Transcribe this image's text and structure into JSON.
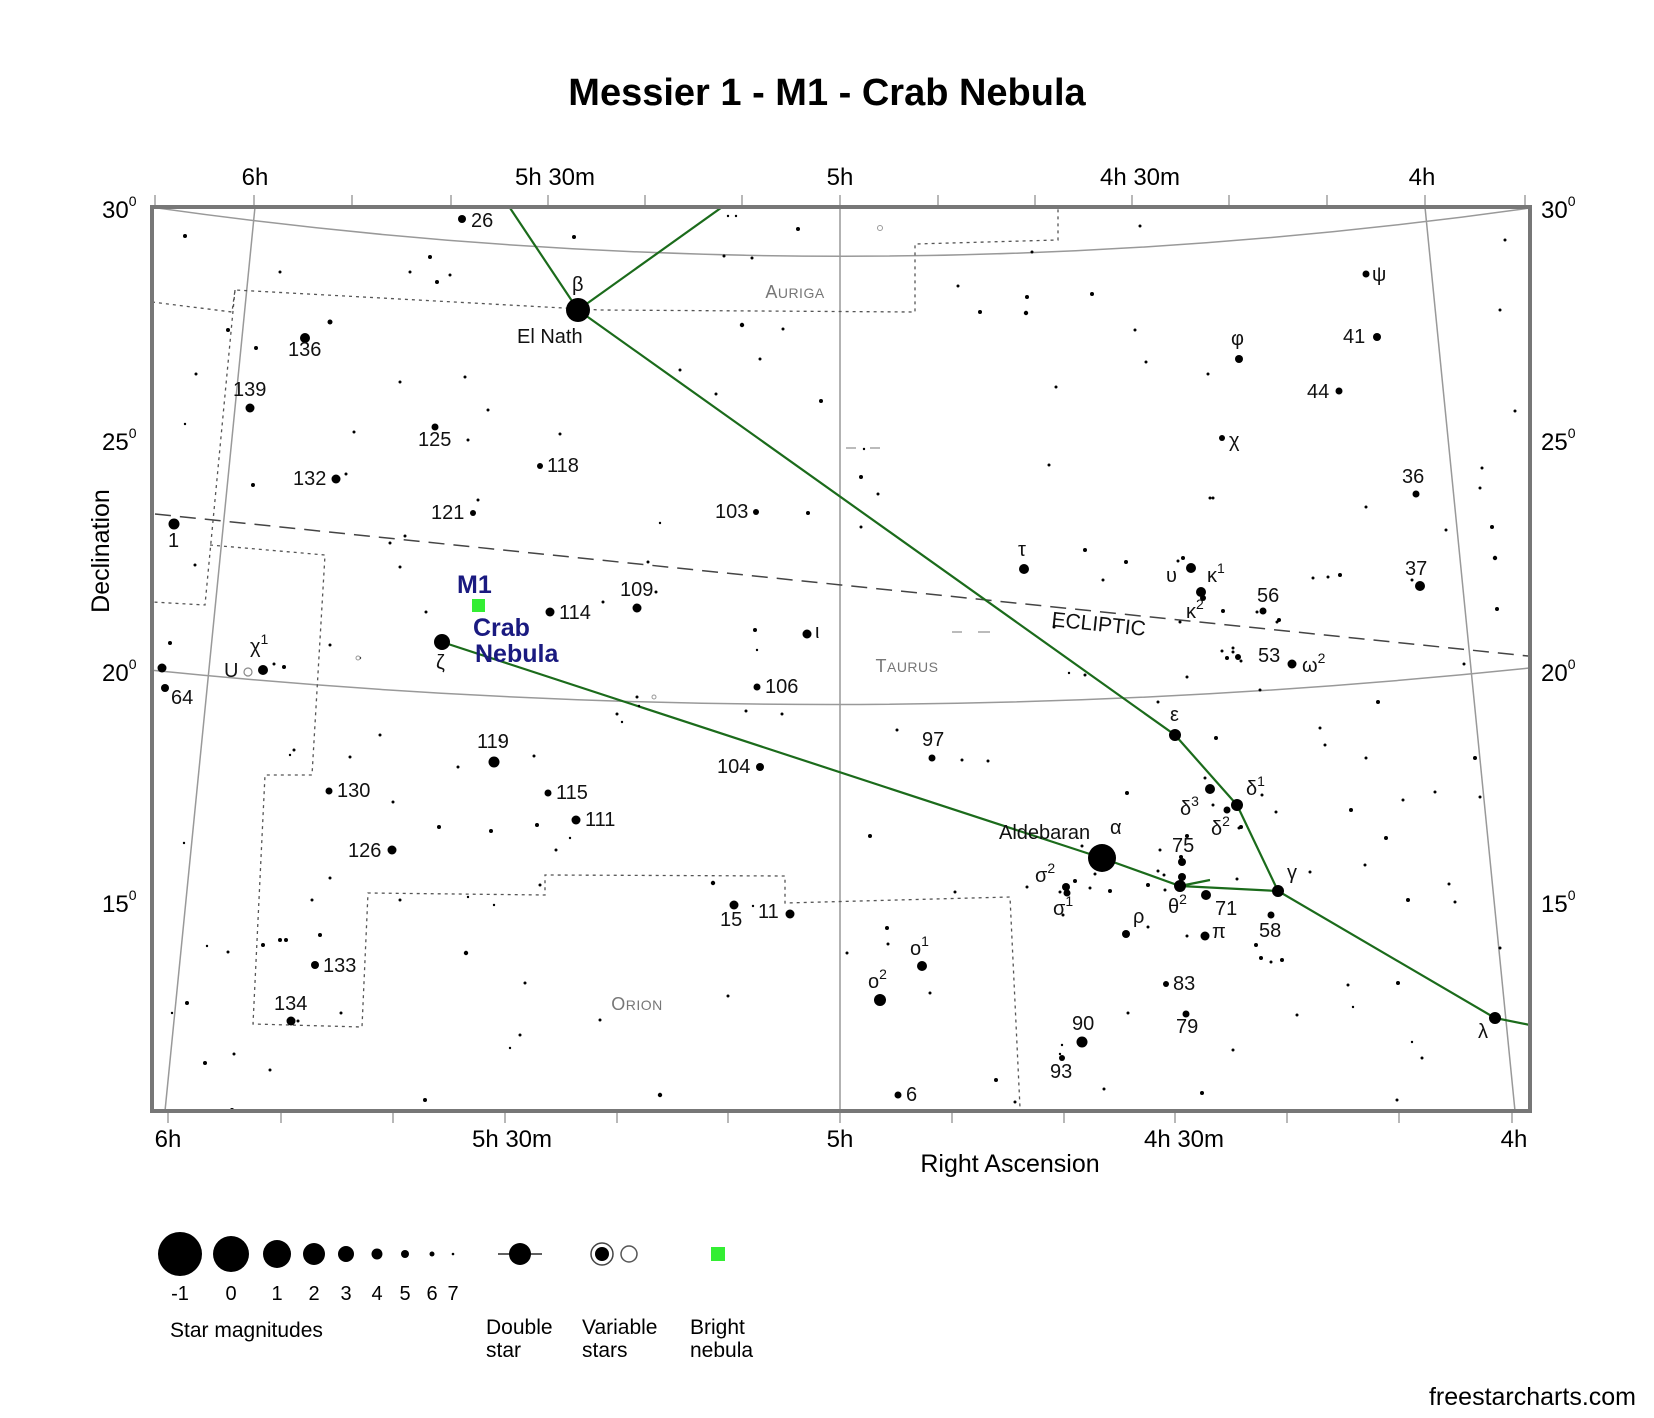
{
  "title": "Messier 1 - M1 - Crab Nebula",
  "colors": {
    "frame": "#777777",
    "grid": "#999999",
    "asterism": "#1b6b1b",
    "boundary": "#555555",
    "nebula": "#33ee33",
    "nebula_label": "#1a1a80",
    "star": "#000000"
  },
  "axes": {
    "x_title": "Right Ascension",
    "y_title": "Declination",
    "ra_ticks_top": [
      "6h",
      "5h 30m",
      "5h",
      "4h 30m",
      "4h"
    ],
    "ra_ticks_bottom": [
      "6h",
      "5h 30m",
      "5h",
      "4h 30m",
      "4h"
    ],
    "dec_ticks_left": [
      {
        "value": "30",
        "degree": "0"
      },
      {
        "value": "25",
        "degree": "0"
      },
      {
        "value": "20",
        "degree": "0"
      },
      {
        "value": "15",
        "degree": "0"
      }
    ],
    "dec_ticks_right": [
      {
        "value": "30",
        "degree": "0"
      },
      {
        "value": "25",
        "degree": "0"
      },
      {
        "value": "20",
        "degree": "0"
      },
      {
        "value": "15",
        "degree": "0"
      }
    ]
  },
  "constellations": [
    {
      "name": "Auriga",
      "label": "Auriga"
    },
    {
      "name": "Taurus",
      "label": "Taurus"
    },
    {
      "name": "Orion",
      "label": "Orion"
    }
  ],
  "ecliptic_label": "ECLIPTIC",
  "target": {
    "label": "M1",
    "name_line1": "Crab",
    "name_line2": "Nebula"
  },
  "star_names": {
    "el_nath": "El Nath",
    "aldebaran": "Aldebaran"
  },
  "labeled_stars": [
    {
      "id": "beta",
      "label": "β",
      "mag": -0.1
    },
    {
      "id": "el_nath",
      "label": "El Nath"
    },
    {
      "id": "zeta",
      "label": "ζ",
      "mag": 1.4
    },
    {
      "id": "alpha",
      "label": "α",
      "mag": -0.9
    },
    {
      "id": "aldebaran",
      "label": "Aldebaran"
    },
    {
      "id": "epsilon",
      "label": "ε",
      "mag": 3.5
    },
    {
      "id": "gamma",
      "label": "γ",
      "mag": 3.6
    },
    {
      "id": "delta1",
      "label": "δ",
      "sup": "1",
      "mag": 3.8
    },
    {
      "id": "delta2",
      "label": "δ",
      "sup": "2",
      "mag": 4.8
    },
    {
      "id": "delta3",
      "label": "δ",
      "sup": "3",
      "mag": 4.3
    },
    {
      "id": "lambda",
      "label": "λ",
      "mag": 3.4
    },
    {
      "id": "theta2",
      "label": "θ",
      "sup": "2",
      "mag": 3.4
    },
    {
      "id": "sigma2",
      "label": "σ",
      "sup": "2",
      "mag": 4.7
    },
    {
      "id": "sigma1",
      "label": "σ",
      "sup": "1",
      "mag": 5.1
    },
    {
      "id": "rho",
      "label": "ρ",
      "mag": 4.6
    },
    {
      "id": "pi",
      "label": "π",
      "mag": 4.7
    },
    {
      "id": "tau",
      "label": "τ",
      "mag": 4.3
    },
    {
      "id": "upsilon",
      "label": "υ",
      "mag": 4.3
    },
    {
      "id": "kappa1",
      "label": "κ",
      "sup": "1",
      "mag": 4.2
    },
    {
      "id": "kappa2",
      "label": "κ",
      "sup": "2",
      "mag": 5.3
    },
    {
      "id": "iota",
      "label": "ι",
      "mag": 4.6
    },
    {
      "id": "omega2",
      "label": "ω",
      "sup": "2",
      "mag": 4.9
    },
    {
      "id": "chi_tau",
      "label": "χ",
      "mag": 5.4
    },
    {
      "id": "phi",
      "label": "φ",
      "mag": 5.0
    },
    {
      "id": "psi",
      "label": "ψ",
      "mag": 5.2
    },
    {
      "id": "chi1_ori",
      "label": "χ",
      "sup": "1",
      "mag": 4.4
    },
    {
      "id": "u_ori",
      "label": "U",
      "mag": 5.5
    },
    {
      "id": "o1",
      "label": "o",
      "sup": "1",
      "mag": 4.7
    },
    {
      "id": "o2",
      "label": "o",
      "sup": "2",
      "mag": 4.1
    },
    {
      "id": "n1",
      "label": "1",
      "mag": 4.6
    },
    {
      "id": "n6",
      "label": "6",
      "mag": 5.7
    },
    {
      "id": "n11",
      "label": "11",
      "mag": 4.7
    },
    {
      "id": "n15",
      "label": "15",
      "mag": 4.8
    },
    {
      "id": "n26",
      "label": "26",
      "mag": 5.4
    },
    {
      "id": "n36",
      "label": "36",
      "mag": 5.5
    },
    {
      "id": "n37",
      "label": "37",
      "mag": 4.4
    },
    {
      "id": "n41",
      "label": "41",
      "mag": 5.2
    },
    {
      "id": "n44",
      "label": "44",
      "mag": 5.4
    },
    {
      "id": "n53",
      "label": "53",
      "mag": 5.5
    },
    {
      "id": "n56",
      "label": "56",
      "mag": 5.4
    },
    {
      "id": "n58",
      "label": "58",
      "mag": 5.3
    },
    {
      "id": "n64",
      "label": "64",
      "mag": 5.1
    },
    {
      "id": "n71",
      "label": "71",
      "mag": 4.5
    },
    {
      "id": "n75",
      "label": "75",
      "mag": 5.0
    },
    {
      "id": "n79",
      "label": "79",
      "mag": 5.0
    },
    {
      "id": "n83",
      "label": "83",
      "mag": 5.4
    },
    {
      "id": "n90",
      "label": "90",
      "mag": 4.3
    },
    {
      "id": "n93",
      "label": "93",
      "mag": 5.5
    },
    {
      "id": "n97",
      "label": "97",
      "mag": 5.1
    },
    {
      "id": "n103",
      "label": "103",
      "mag": 5.5
    },
    {
      "id": "n104",
      "label": "104",
      "mag": 5.0
    },
    {
      "id": "n106",
      "label": "106",
      "mag": 5.3
    },
    {
      "id": "n109",
      "label": "109",
      "mag": 4.9
    },
    {
      "id": "n111",
      "label": "111",
      "mag": 5.0
    },
    {
      "id": "n114",
      "label": "114",
      "mag": 4.9
    },
    {
      "id": "n115",
      "label": "115",
      "mag": 5.4
    },
    {
      "id": "n118",
      "label": "118",
      "mag": 5.5
    },
    {
      "id": "n119",
      "label": "119",
      "mag": 4.4
    },
    {
      "id": "n121",
      "label": "121",
      "mag": 5.4
    },
    {
      "id": "n125",
      "label": "125",
      "mag": 5.2
    },
    {
      "id": "n126",
      "label": "126",
      "mag": 4.8
    },
    {
      "id": "n130",
      "label": "130",
      "mag": 5.5
    },
    {
      "id": "n132",
      "label": "132",
      "mag": 4.9
    },
    {
      "id": "n133",
      "label": "133",
      "mag": 5.3
    },
    {
      "id": "n134",
      "label": "134",
      "mag": 4.9
    },
    {
      "id": "n136",
      "label": "136",
      "mag": 4.6
    },
    {
      "id": "n139",
      "label": "139",
      "mag": 4.8
    }
  ],
  "legend": {
    "magnitudes_title": "Star magnitudes",
    "magnitudes": [
      "-1",
      "0",
      "1",
      "2",
      "3",
      "4",
      "5",
      "6",
      "7"
    ],
    "double_star_line1": "Double",
    "double_star_line2": "star",
    "variable_line1": "Variable",
    "variable_line2": "stars",
    "nebula_line1": "Bright",
    "nebula_line2": "nebula"
  },
  "credit": "freestarcharts.com"
}
